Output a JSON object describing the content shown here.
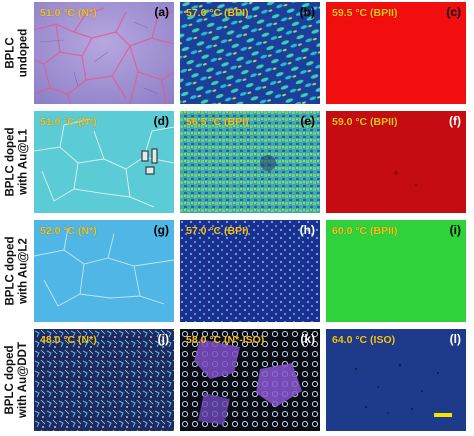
{
  "rows": [
    {
      "label": "BPLC\nundoped",
      "panels": [
        {
          "temperature": "51.0 °C (N*)",
          "tag": "(a)",
          "texture": "tex-a"
        },
        {
          "temperature": "57.0 °C (BPI)",
          "tag": "(b)",
          "texture": "tex-b"
        },
        {
          "temperature": "59.5 °C (BPII)",
          "tag": "(c)",
          "texture": "tex-c"
        }
      ]
    },
    {
      "label": "BPLC doped\nwith Au@L1",
      "panels": [
        {
          "temperature": "51.0 °C (N*)",
          "tag": "(d)",
          "texture": "tex-d"
        },
        {
          "temperature": "56.5 °C (BPI)",
          "tag": "(e)",
          "texture": "tex-e"
        },
        {
          "temperature": "59.0 °C (BPII)",
          "tag": "(f)",
          "texture": "tex-f"
        }
      ]
    },
    {
      "label": "BPLC doped\nwith Au@L2",
      "panels": [
        {
          "temperature": "52.0 °C (N*)",
          "tag": "(g)",
          "texture": "tex-g"
        },
        {
          "temperature": "57.0 °C (BPI)",
          "tag": "(h)",
          "texture": "tex-h"
        },
        {
          "temperature": "60.0 °C (BPII)",
          "tag": "(i)",
          "texture": "tex-i"
        }
      ]
    },
    {
      "label": "BPLC doped\nwith Au@DDT",
      "panels": [
        {
          "temperature": "48.0 °C (N*)",
          "tag": "(j)",
          "texture": "tex-j"
        },
        {
          "temperature": "58.0 °C (N*-ISO)",
          "tag": "(k)",
          "texture": "tex-k"
        },
        {
          "temperature": "64.0 °C (ISO)",
          "tag": "(l)",
          "texture": "tex-l"
        }
      ]
    }
  ],
  "scale_bar_color": "#f5e500"
}
